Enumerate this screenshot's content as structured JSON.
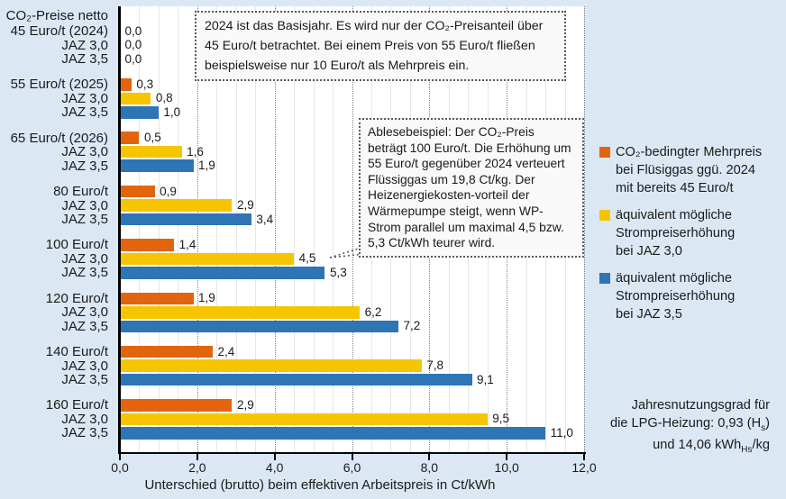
{
  "colors": {
    "background": "#dbe8f4",
    "plot_bg": "#ffffff",
    "orange": "#e2650e",
    "yellow": "#f6c500",
    "blue": "#2e75b5",
    "axis": "#000000",
    "grid_minor": "#e4e6e8",
    "grid_major": "#7f7f7f",
    "box_border": "#595959",
    "text": "#1a1a1a"
  },
  "chart_data": {
    "type": "bar",
    "orientation": "horizontal",
    "title": "",
    "xlabel": "Unterschied (brutto) beim effektiven Arbeitspreis in Ct/kWh",
    "ylabel": "",
    "xlim": [
      0,
      12
    ],
    "xticks": [
      0,
      2,
      4,
      6,
      8,
      10,
      12
    ],
    "xtick_labels": [
      "0,0",
      "2,0",
      "4,0",
      "6,0",
      "8,0",
      "10,0",
      "12,0"
    ],
    "grid_minor_step": 0.5,
    "grid_major_step": 2,
    "axis_label_top": "CO₂-Preise netto",
    "row_sublabels": [
      "JAZ 3,0",
      "JAZ 3,5"
    ],
    "series": [
      {
        "name": "CO₂-bedingter Mehrpreis bei Flüsiggas ggü. 2024 mit bereits 45 Euro/t",
        "color_key": "orange"
      },
      {
        "name": "äquivalent mögliche Strompreiserhöhung bei JAZ 3,0",
        "color_key": "yellow"
      },
      {
        "name": "äquivalent mögliche Strompreiserhöhung bei JAZ 3,5",
        "color_key": "blue"
      }
    ],
    "groups": [
      {
        "label": "45 Euro/t (2024)",
        "values": [
          0.0,
          0.0,
          0.0
        ],
        "value_labels": [
          "0,0",
          "0,0",
          "0,0"
        ]
      },
      {
        "label": "55 Euro/t (2025)",
        "values": [
          0.3,
          0.8,
          1.0
        ],
        "value_labels": [
          "0,3",
          "0,8",
          "1,0"
        ]
      },
      {
        "label": "65 Euro/t (2026)",
        "values": [
          0.5,
          1.6,
          1.9
        ],
        "value_labels": [
          "0,5",
          "1,6",
          "1,9"
        ]
      },
      {
        "label": "80 Euro/t",
        "values": [
          0.9,
          2.9,
          3.4
        ],
        "value_labels": [
          "0,9",
          "2,9",
          "3,4"
        ]
      },
      {
        "label": "100 Euro/t",
        "values": [
          1.4,
          4.5,
          5.3
        ],
        "value_labels": [
          "1,4",
          "4,5",
          "5,3"
        ]
      },
      {
        "label": "120 Euro/t",
        "values": [
          1.9,
          6.2,
          7.2
        ],
        "value_labels": [
          "1,9",
          "6,2",
          "7,2"
        ]
      },
      {
        "label": "140 Euro/t",
        "values": [
          2.4,
          7.8,
          9.1
        ],
        "value_labels": [
          "2,4",
          "7,8",
          "9,1"
        ]
      },
      {
        "label": "160 Euro/t",
        "values": [
          2.9,
          9.5,
          11.0
        ],
        "value_labels": [
          "2,9",
          "9,5",
          "11,0"
        ]
      }
    ]
  },
  "annotations": {
    "basisjahr_note": "2024 ist das Basisjahr. Es wird nur der CO₂-Preisanteil über 45 Euro/t betrachtet. Bei einem Preis von 55 Euro/t fließen beispielsweise nur 10 Euro/t als Mehrpreis ein.",
    "ablesebeispiel_note": "Ablesebeispiel: Der CO₂-Preis beträgt 100 Euro/t. Die Erhöhung um 55 Euro/t gegenüber 2024 verteuert Flüssiggas um 19,8 Ct/kg. Der Heizenergiekosten-vorteil der Wärmepumpe steigt, wenn WP-Strom parallel um maximal 4,5 bzw. 5,3 Ct/kWh  teurer wird."
  },
  "legend": {
    "items": [
      {
        "color_key": "orange",
        "lines": [
          "CO₂-bedingter Mehrpreis",
          "bei Flüsiggas ggü. 2024",
          "mit bereits 45 Euro/t"
        ]
      },
      {
        "color_key": "yellow",
        "lines": [
          "äquivalent mögliche",
          "Strompreiserhöhung",
          "bei JAZ 3,0"
        ]
      },
      {
        "color_key": "blue",
        "lines": [
          "äquivalent mögliche",
          "Strompreiserhöhung",
          "bei JAZ 3,5"
        ]
      }
    ]
  },
  "footnote": {
    "line1": "Jahresnutzungsgrad für",
    "line2_pre": "die LPG-Heizung: 0,93 (H",
    "line2_sub": "s",
    "line2_post": ")",
    "line3_pre": "und 14,06 kWh",
    "line3_sub": "Hs",
    "line3_post": "/kg"
  }
}
